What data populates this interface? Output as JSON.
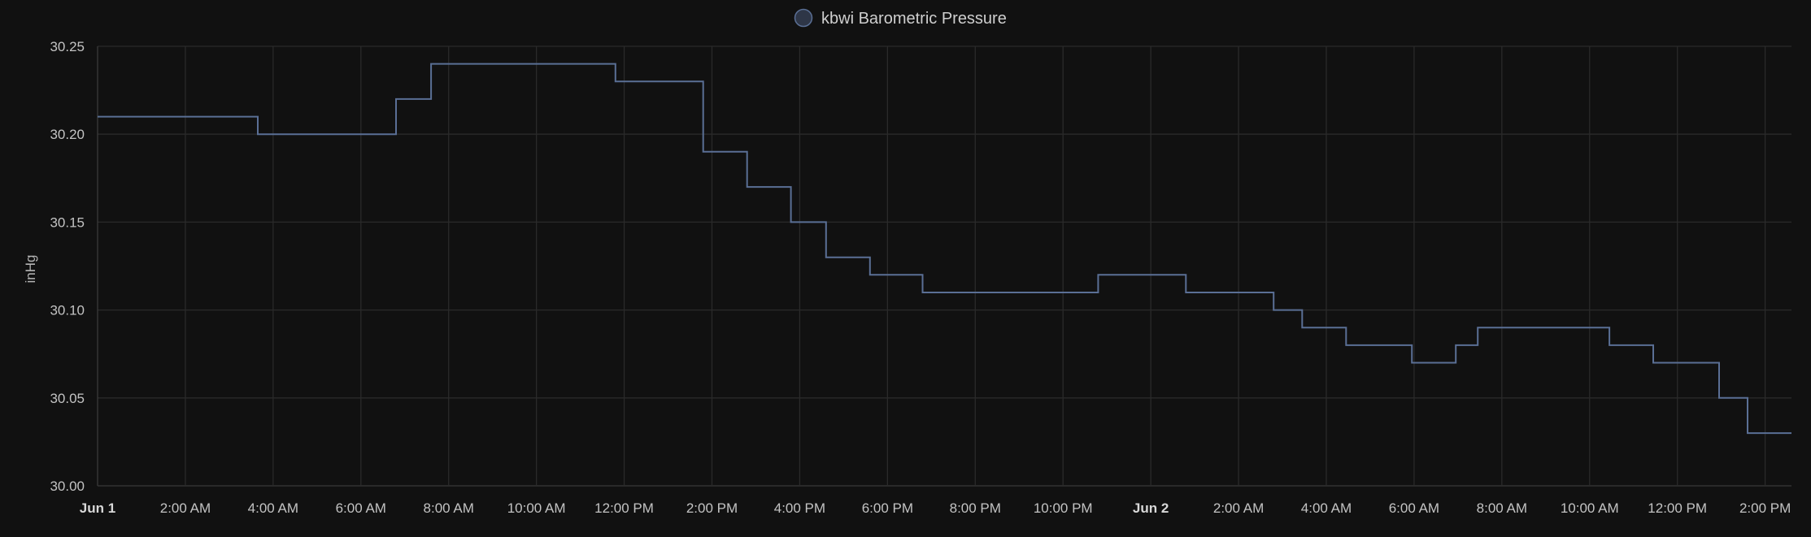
{
  "chart_data": {
    "type": "line",
    "step": true,
    "title": "",
    "xlabel": "",
    "ylabel": "inHg",
    "ylim": [
      30.0,
      30.25
    ],
    "y_ticks": [
      "30.00",
      "30.05",
      "30.10",
      "30.15",
      "30.20",
      "30.25"
    ],
    "x_range_hours": [
      0,
      38.6
    ],
    "x_ticks": [
      {
        "label": "Jun 1",
        "hour": 0,
        "bold": true
      },
      {
        "label": "2:00 AM",
        "hour": 2
      },
      {
        "label": "4:00 AM",
        "hour": 4
      },
      {
        "label": "6:00 AM",
        "hour": 6
      },
      {
        "label": "8:00 AM",
        "hour": 8
      },
      {
        "label": "10:00 AM",
        "hour": 10
      },
      {
        "label": "12:00 PM",
        "hour": 12
      },
      {
        "label": "2:00 PM",
        "hour": 14
      },
      {
        "label": "4:00 PM",
        "hour": 16
      },
      {
        "label": "6:00 PM",
        "hour": 18
      },
      {
        "label": "8:00 PM",
        "hour": 20
      },
      {
        "label": "10:00 PM",
        "hour": 22
      },
      {
        "label": "Jun 2",
        "hour": 24,
        "bold": true
      },
      {
        "label": "2:00 AM",
        "hour": 26
      },
      {
        "label": "4:00 AM",
        "hour": 28
      },
      {
        "label": "6:00 AM",
        "hour": 30
      },
      {
        "label": "8:00 AM",
        "hour": 32
      },
      {
        "label": "10:00 AM",
        "hour": 34
      },
      {
        "label": "12:00 PM",
        "hour": 36
      },
      {
        "label": "2:00 PM",
        "hour": 38
      }
    ],
    "grid": true,
    "legend_position": "top-center",
    "series": [
      {
        "name": "kbwi Barometric Pressure",
        "color": "#5a6f95",
        "points": [
          [
            0.0,
            30.21
          ],
          [
            3.65,
            30.2
          ],
          [
            6.8,
            30.22
          ],
          [
            7.6,
            30.24
          ],
          [
            11.8,
            30.23
          ],
          [
            13.8,
            30.19
          ],
          [
            14.8,
            30.17
          ],
          [
            15.8,
            30.15
          ],
          [
            16.6,
            30.13
          ],
          [
            17.6,
            30.12
          ],
          [
            18.8,
            30.11
          ],
          [
            22.8,
            30.12
          ],
          [
            24.8,
            30.11
          ],
          [
            26.8,
            30.1
          ],
          [
            27.45,
            30.09
          ],
          [
            28.45,
            30.08
          ],
          [
            29.95,
            30.07
          ],
          [
            30.95,
            30.08
          ],
          [
            31.45,
            30.09
          ],
          [
            34.45,
            30.08
          ],
          [
            35.45,
            30.07
          ],
          [
            36.95,
            30.05
          ],
          [
            37.6,
            30.03
          ]
        ],
        "end_hour": 38.6
      }
    ]
  }
}
